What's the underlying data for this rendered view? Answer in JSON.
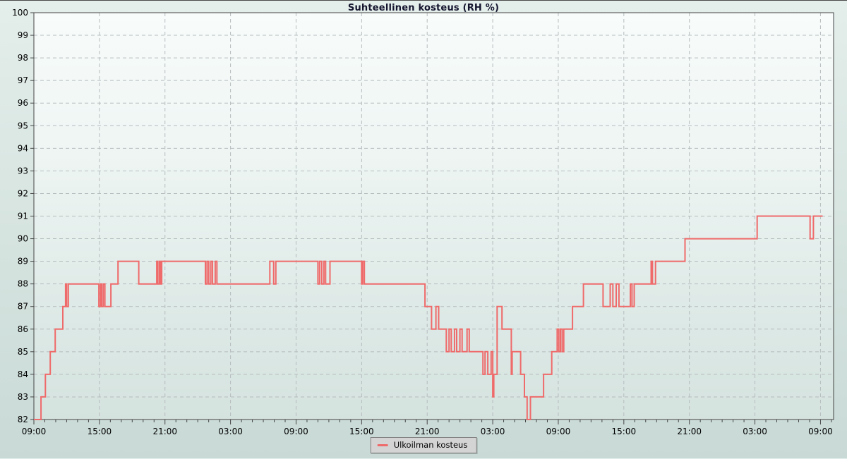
{
  "window": {
    "title": "Suhteellinen kosteus (RH %)"
  },
  "legend": {
    "label": "Ulkoilman kosteus"
  },
  "colors": {
    "series": "#ef6a6a",
    "grid": "#b6bcbe",
    "axis": "#454545",
    "legend_bg": "#d4d4d4",
    "legend_border": "#828282",
    "title_text": "#15152e"
  },
  "chart_data": {
    "type": "line",
    "line_style": "step-after",
    "title": "Suhteellinen kosteus (RH %)",
    "xlabel": "",
    "ylabel": "",
    "ylim": [
      82,
      100
    ],
    "y_tick_labels": [
      "82",
      "83",
      "84",
      "85",
      "86",
      "87",
      "88",
      "89",
      "90",
      "91",
      "92",
      "93",
      "94",
      "95",
      "96",
      "97",
      "98",
      "99",
      "100"
    ],
    "x_axis_unit": "hours from start",
    "x_span_hours": 73.2,
    "x_major_ticks": [
      {
        "hour": 0,
        "label": "09:00"
      },
      {
        "hour": 6,
        "label": "15:00"
      },
      {
        "hour": 12,
        "label": "21:00"
      },
      {
        "hour": 18,
        "label": "03:00"
      },
      {
        "hour": 24,
        "label": "09:00"
      },
      {
        "hour": 30,
        "label": "15:00"
      },
      {
        "hour": 36,
        "label": "21:00"
      },
      {
        "hour": 42,
        "label": "03:00"
      },
      {
        "hour": 48,
        "label": "09:00"
      },
      {
        "hour": 54,
        "label": "15:00"
      },
      {
        "hour": 60,
        "label": "21:00"
      },
      {
        "hour": 66,
        "label": "03:00"
      },
      {
        "hour": 72,
        "label": "09:00"
      }
    ],
    "minor_tick_every_hours": 1,
    "grid": true,
    "legend_position": "bottom-center",
    "series": [
      {
        "name": "Ulkoilman kosteus",
        "color": "#ef6a6a",
        "points_hour_value": [
          [
            0,
            82
          ],
          [
            0.65,
            83
          ],
          [
            1.05,
            84
          ],
          [
            1.5,
            85
          ],
          [
            1.95,
            86
          ],
          [
            2.65,
            87
          ],
          [
            2.9,
            88
          ],
          [
            3.0,
            87
          ],
          [
            3.15,
            88
          ],
          [
            5.95,
            87
          ],
          [
            6.1,
            88
          ],
          [
            6.2,
            87
          ],
          [
            6.35,
            88
          ],
          [
            6.5,
            87
          ],
          [
            7.05,
            88
          ],
          [
            7.7,
            89
          ],
          [
            9.6,
            88
          ],
          [
            11.25,
            89
          ],
          [
            11.35,
            88
          ],
          [
            11.5,
            89
          ],
          [
            11.6,
            88
          ],
          [
            11.7,
            89
          ],
          [
            15.7,
            88
          ],
          [
            15.85,
            89
          ],
          [
            16.0,
            88
          ],
          [
            16.2,
            89
          ],
          [
            16.35,
            88
          ],
          [
            16.6,
            89
          ],
          [
            16.75,
            88
          ],
          [
            21.6,
            89
          ],
          [
            21.95,
            88
          ],
          [
            22.15,
            89
          ],
          [
            26.0,
            88
          ],
          [
            26.15,
            89
          ],
          [
            26.35,
            88
          ],
          [
            26.55,
            89
          ],
          [
            26.7,
            88
          ],
          [
            27.1,
            89
          ],
          [
            30.0,
            88
          ],
          [
            30.1,
            89
          ],
          [
            30.25,
            88
          ],
          [
            35.8,
            87
          ],
          [
            36.4,
            86
          ],
          [
            36.8,
            87
          ],
          [
            37.05,
            86
          ],
          [
            37.75,
            85
          ],
          [
            38.0,
            86
          ],
          [
            38.2,
            85
          ],
          [
            38.5,
            86
          ],
          [
            38.7,
            85
          ],
          [
            39.0,
            86
          ],
          [
            39.2,
            85
          ],
          [
            39.65,
            86
          ],
          [
            39.85,
            85
          ],
          [
            41.1,
            84
          ],
          [
            41.3,
            85
          ],
          [
            41.55,
            84
          ],
          [
            41.85,
            85
          ],
          [
            42.0,
            83
          ],
          [
            42.1,
            84
          ],
          [
            42.4,
            87
          ],
          [
            42.85,
            86
          ],
          [
            43.7,
            84
          ],
          [
            43.78,
            85
          ],
          [
            44.55,
            84
          ],
          [
            44.9,
            83
          ],
          [
            45.15,
            82
          ],
          [
            45.45,
            83
          ],
          [
            46.65,
            84
          ],
          [
            47.4,
            85
          ],
          [
            47.9,
            86
          ],
          [
            48.05,
            85
          ],
          [
            48.2,
            86
          ],
          [
            48.35,
            85
          ],
          [
            48.5,
            86
          ],
          [
            49.3,
            87
          ],
          [
            50.3,
            88
          ],
          [
            52.1,
            87
          ],
          [
            52.75,
            88
          ],
          [
            53.0,
            87
          ],
          [
            53.3,
            88
          ],
          [
            53.55,
            87
          ],
          [
            54.6,
            88
          ],
          [
            54.75,
            87
          ],
          [
            54.95,
            88
          ],
          [
            56.5,
            89
          ],
          [
            56.62,
            88
          ],
          [
            56.9,
            89
          ],
          [
            59.6,
            90
          ],
          [
            66.2,
            91
          ],
          [
            71.05,
            90
          ],
          [
            71.35,
            91
          ],
          [
            72.2,
            91
          ]
        ]
      }
    ]
  }
}
